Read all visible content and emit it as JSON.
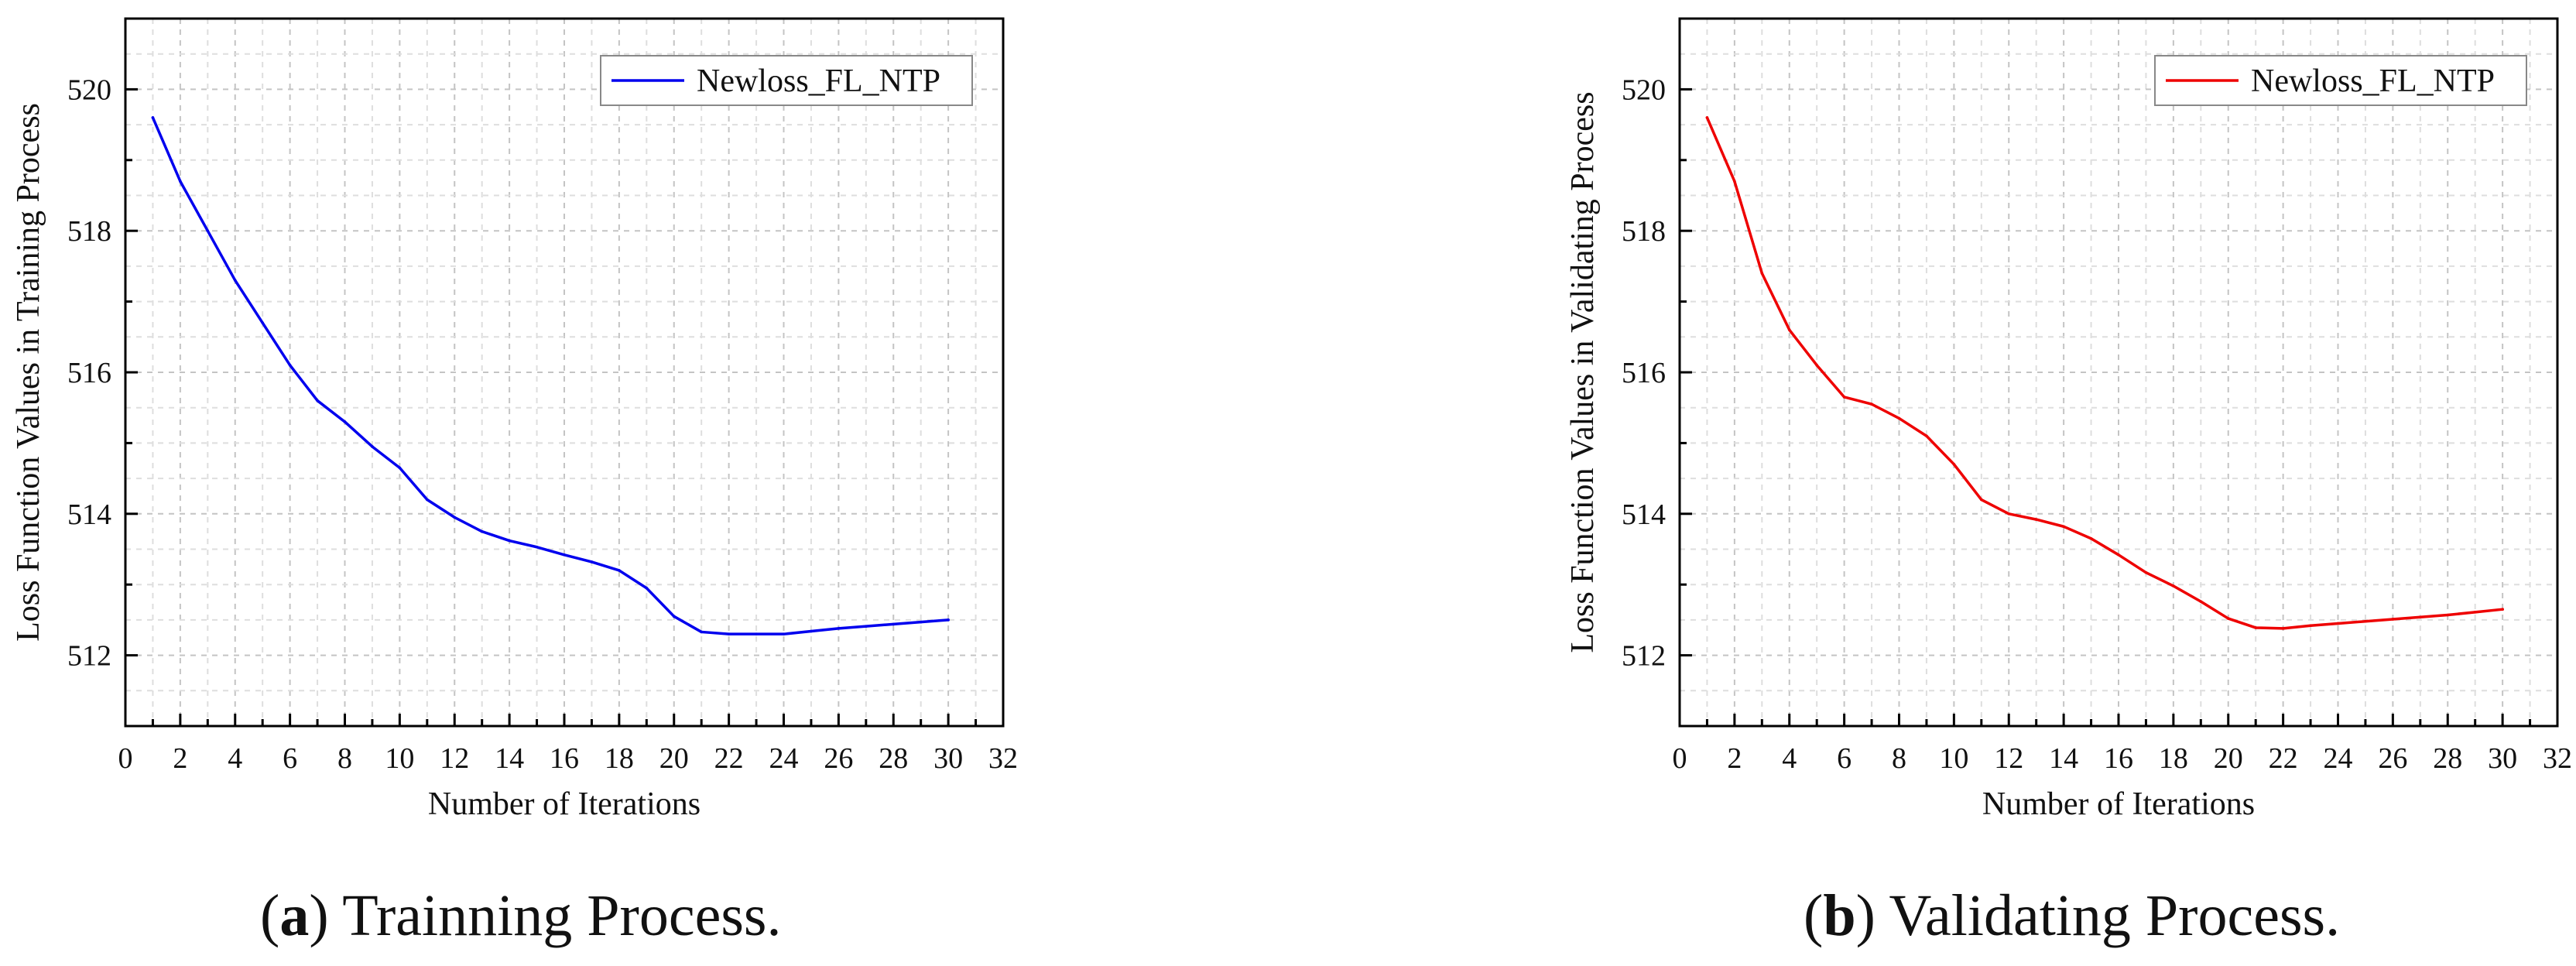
{
  "chart_data": [
    {
      "type": "line",
      "panel": "a",
      "caption_letter": "a",
      "caption_text": "Trainning Process.",
      "xlabel": "Number of Iterations",
      "ylabel": "Loss Function Values in Training Process",
      "xlim": [
        0,
        32
      ],
      "ylim": [
        511,
        521
      ],
      "xticks": [
        0,
        2,
        4,
        6,
        8,
        10,
        12,
        14,
        16,
        18,
        20,
        22,
        24,
        26,
        28,
        30,
        32
      ],
      "yticks": [
        512,
        514,
        516,
        518,
        520
      ],
      "grid": true,
      "legend": "top-right",
      "series": [
        {
          "name": "Newloss_FL_NTP",
          "color": "#0000ee",
          "x": [
            1,
            2,
            3,
            4,
            5,
            6,
            7,
            8,
            9,
            10,
            11,
            12,
            13,
            14,
            15,
            16,
            17,
            18,
            19,
            20,
            21,
            22,
            23,
            24,
            25,
            26,
            27,
            28,
            29,
            30
          ],
          "y": [
            519.6,
            518.7,
            518.0,
            517.3,
            516.7,
            516.1,
            515.6,
            515.3,
            514.95,
            514.65,
            514.2,
            513.95,
            513.75,
            513.62,
            513.53,
            513.42,
            513.32,
            513.2,
            512.95,
            512.55,
            512.33,
            512.3,
            512.3,
            512.3,
            512.34,
            512.38,
            512.41,
            512.44,
            512.47,
            512.5
          ]
        }
      ]
    },
    {
      "type": "line",
      "panel": "b",
      "caption_letter": "b",
      "caption_text": "Validating Process.",
      "xlabel": "Number of Iterations",
      "ylabel": "Loss Function Values in Validating Process",
      "xlim": [
        0,
        32
      ],
      "ylim": [
        511,
        521
      ],
      "xticks": [
        0,
        2,
        4,
        6,
        8,
        10,
        12,
        14,
        16,
        18,
        20,
        22,
        24,
        26,
        28,
        30,
        32
      ],
      "yticks": [
        512,
        514,
        516,
        518,
        520
      ],
      "grid": true,
      "legend": "top-right",
      "series": [
        {
          "name": "Newloss_FL_NTP",
          "color": "#ee0000",
          "x": [
            1,
            2,
            3,
            4,
            5,
            6,
            7,
            8,
            9,
            10,
            11,
            12,
            13,
            14,
            15,
            16,
            17,
            18,
            19,
            20,
            21,
            22,
            23,
            24,
            25,
            26,
            27,
            28,
            29,
            30
          ],
          "y": [
            519.6,
            518.7,
            517.4,
            516.6,
            516.1,
            515.65,
            515.55,
            515.35,
            515.1,
            514.7,
            514.2,
            514.0,
            513.92,
            513.82,
            513.65,
            513.42,
            513.17,
            512.98,
            512.76,
            512.52,
            512.39,
            512.38,
            512.42,
            512.45,
            512.48,
            512.51,
            512.54,
            512.57,
            512.61,
            512.65
          ]
        }
      ]
    }
  ]
}
